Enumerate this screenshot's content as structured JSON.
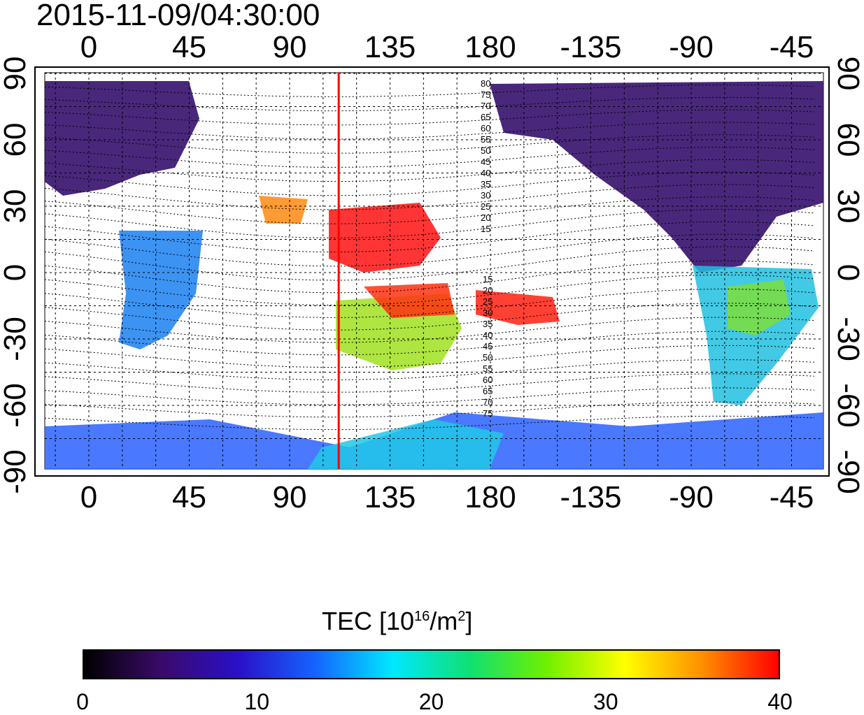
{
  "title": "2015-11-09/04:30:00",
  "map": {
    "top_lon_labels": [
      "0",
      "45",
      "90",
      "135",
      "180",
      "-135",
      "-90",
      "-45"
    ],
    "bottom_lon_labels": [
      "0",
      "45",
      "90",
      "135",
      "180",
      "-135",
      "-90",
      "-45"
    ],
    "left_lat_labels": [
      "90",
      "60",
      "30",
      "0",
      "-30",
      "-60",
      "-90"
    ],
    "right_lat_labels": [
      "90",
      "60",
      "30",
      "0",
      "-30",
      "-60",
      "-90"
    ],
    "marker_line_color": "#ff0000",
    "marker_line_lon": 112,
    "contour_labels_north": [
      "80",
      "75",
      "70",
      "65",
      "60",
      "55",
      "50",
      "45",
      "40",
      "35",
      "30",
      "25",
      "20",
      "15"
    ],
    "contour_labels_south": [
      "15",
      "20",
      "25",
      "30",
      "35",
      "40",
      "45",
      "50",
      "55",
      "60",
      "65",
      "70",
      "75"
    ]
  },
  "colorbar": {
    "title_prefix": "TEC  [10",
    "title_exp1": "16",
    "title_mid": "/m",
    "title_exp2": "2",
    "title_suffix": "]",
    "min": 0,
    "max": 40,
    "tick_labels": [
      "0",
      "10",
      "20",
      "30",
      "40"
    ],
    "colormap": [
      "#000000",
      "#3a0a6a",
      "#2a10c8",
      "#1464ff",
      "#00e8ff",
      "#10e070",
      "#70f000",
      "#ffff00",
      "#ff9000",
      "#ff0000"
    ]
  }
}
